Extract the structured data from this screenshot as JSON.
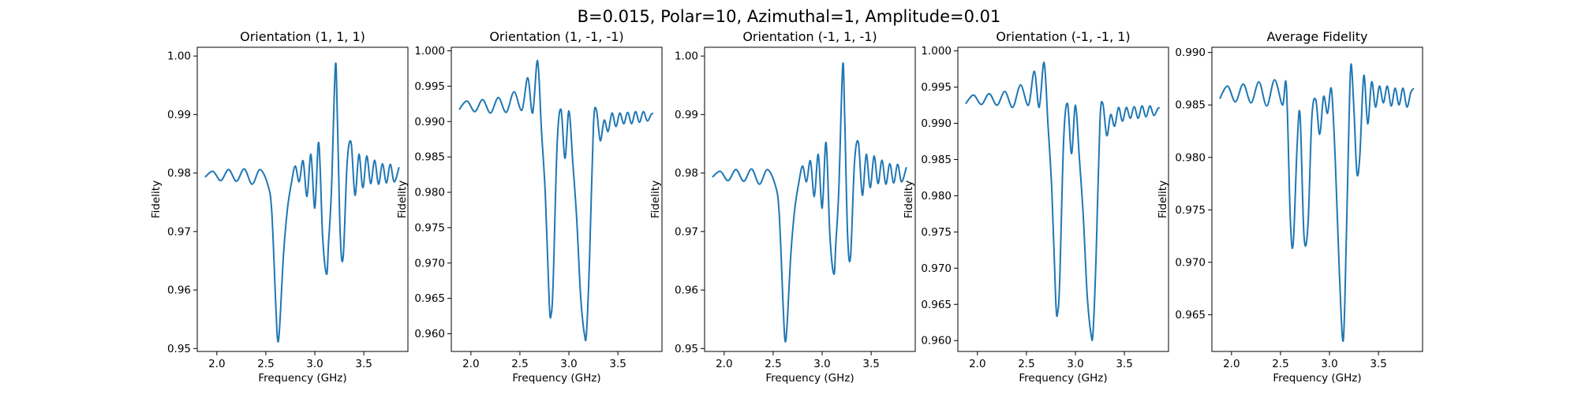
{
  "figure": {
    "suptitle": "B=0.015, Polar=10, Azimuthal=1, Amplitude=0.01",
    "line_color": "#1f77b4"
  },
  "chart_data": [
    {
      "type": "line",
      "title": "Orientation (1, 1, 1)",
      "xlabel": "Frequency (GHz)",
      "ylabel": "Fidelity",
      "xlim": [
        1.8,
        3.95
      ],
      "ylim": [
        0.9495,
        1.0015
      ],
      "xticks": [
        2.0,
        2.5,
        3.0,
        3.5
      ],
      "xtick_labels": [
        "2.0",
        "2.5",
        "3.0",
        "3.5"
      ],
      "yticks": [
        0.95,
        0.96,
        0.97,
        0.98,
        0.99,
        1.0
      ],
      "ytick_labels": [
        "0.95",
        "0.96",
        "0.97",
        "0.98",
        "0.99",
        "1.00"
      ],
      "x": [
        1.88,
        1.96,
        2.04,
        2.12,
        2.2,
        2.28,
        2.36,
        2.44,
        2.52,
        2.56,
        2.6,
        2.62,
        2.64,
        2.68,
        2.72,
        2.76,
        2.8,
        2.84,
        2.88,
        2.92,
        2.96,
        3.0,
        3.04,
        3.08,
        3.12,
        3.14,
        3.17,
        3.21,
        3.23,
        3.26,
        3.29,
        3.33,
        3.37,
        3.41,
        3.45,
        3.49,
        3.53,
        3.57,
        3.61,
        3.65,
        3.69,
        3.73,
        3.77,
        3.81,
        3.86
      ],
      "y": [
        0.9793,
        0.9803,
        0.9787,
        0.9806,
        0.9786,
        0.9807,
        0.9781,
        0.9806,
        0.978,
        0.9735,
        0.958,
        0.9515,
        0.9535,
        0.966,
        0.9738,
        0.9782,
        0.9812,
        0.9785,
        0.9821,
        0.976,
        0.9832,
        0.974,
        0.9852,
        0.969,
        0.9627,
        0.9681,
        0.9772,
        0.9984,
        0.9895,
        0.9692,
        0.9658,
        0.9818,
        0.9852,
        0.9762,
        0.9832,
        0.9775,
        0.9829,
        0.9782,
        0.9822,
        0.9781,
        0.9816,
        0.9783,
        0.9815,
        0.9785,
        0.981
      ]
    },
    {
      "type": "line",
      "title": "Orientation (1, -1, -1)",
      "xlabel": "Frequency (GHz)",
      "ylabel": "Fidelity",
      "xlim": [
        1.8,
        3.95
      ],
      "ylim": [
        0.9575,
        1.0005
      ],
      "xticks": [
        2.0,
        2.5,
        3.0,
        3.5
      ],
      "xtick_labels": [
        "2.0",
        "2.5",
        "3.0",
        "3.5"
      ],
      "yticks": [
        0.96,
        0.965,
        0.97,
        0.975,
        0.98,
        0.985,
        0.99,
        0.995,
        1.0
      ],
      "ytick_labels": [
        "0.960",
        "0.965",
        "0.970",
        "0.975",
        "0.980",
        "0.985",
        "0.990",
        "0.995",
        "1.000"
      ],
      "x": [
        1.88,
        1.96,
        2.04,
        2.12,
        2.2,
        2.28,
        2.36,
        2.44,
        2.52,
        2.58,
        2.63,
        2.68,
        2.72,
        2.76,
        2.8,
        2.82,
        2.84,
        2.88,
        2.92,
        2.96,
        3.0,
        3.04,
        3.08,
        3.12,
        3.16,
        3.18,
        3.21,
        3.25,
        3.28,
        3.32,
        3.36,
        3.4,
        3.44,
        3.48,
        3.52,
        3.56,
        3.6,
        3.64,
        3.68,
        3.72,
        3.76,
        3.8,
        3.84,
        3.86
      ],
      "y": [
        0.9917,
        0.9929,
        0.9914,
        0.9931,
        0.9912,
        0.9934,
        0.9913,
        0.9942,
        0.9916,
        0.9962,
        0.9912,
        0.9986,
        0.9888,
        0.9795,
        0.9642,
        0.9628,
        0.9675,
        0.9868,
        0.9917,
        0.9848,
        0.9915,
        0.9842,
        0.9762,
        0.9653,
        0.9598,
        0.9602,
        0.9702,
        0.9892,
        0.9917,
        0.9873,
        0.9902,
        0.9886,
        0.9912,
        0.9893,
        0.9912,
        0.9897,
        0.9913,
        0.9897,
        0.9914,
        0.9899,
        0.9914,
        0.9901,
        0.991,
        0.9912
      ]
    },
    {
      "type": "line",
      "title": "Orientation (-1, 1, -1)",
      "xlabel": "Frequency (GHz)",
      "ylabel": "Fidelity",
      "xlim": [
        1.8,
        3.95
      ],
      "ylim": [
        0.9495,
        1.0015
      ],
      "xticks": [
        2.0,
        2.5,
        3.0,
        3.5
      ],
      "xtick_labels": [
        "2.0",
        "2.5",
        "3.0",
        "3.5"
      ],
      "yticks": [
        0.95,
        0.96,
        0.97,
        0.98,
        0.99,
        1.0
      ],
      "ytick_labels": [
        "0.95",
        "0.96",
        "0.97",
        "0.98",
        "0.99",
        "1.00"
      ],
      "x": [
        1.88,
        1.96,
        2.04,
        2.12,
        2.2,
        2.28,
        2.36,
        2.44,
        2.52,
        2.56,
        2.6,
        2.62,
        2.64,
        2.68,
        2.72,
        2.76,
        2.8,
        2.84,
        2.88,
        2.92,
        2.96,
        3.0,
        3.04,
        3.08,
        3.12,
        3.14,
        3.17,
        3.21,
        3.23,
        3.26,
        3.29,
        3.33,
        3.37,
        3.41,
        3.45,
        3.49,
        3.53,
        3.57,
        3.61,
        3.65,
        3.69,
        3.73,
        3.77,
        3.81,
        3.86
      ],
      "y": [
        0.9793,
        0.9803,
        0.9787,
        0.9806,
        0.9786,
        0.9807,
        0.9781,
        0.9806,
        0.978,
        0.9735,
        0.958,
        0.9515,
        0.9535,
        0.966,
        0.9738,
        0.9782,
        0.9812,
        0.9785,
        0.9821,
        0.976,
        0.9832,
        0.974,
        0.9852,
        0.969,
        0.9627,
        0.9681,
        0.9772,
        0.9984,
        0.9895,
        0.9692,
        0.9658,
        0.9818,
        0.9852,
        0.9762,
        0.9832,
        0.9775,
        0.9829,
        0.9782,
        0.9822,
        0.9781,
        0.9816,
        0.9783,
        0.9815,
        0.9785,
        0.981
      ]
    },
    {
      "type": "line",
      "title": "Orientation (-1, -1, 1)",
      "xlabel": "Frequency (GHz)",
      "ylabel": "Fidelity",
      "xlim": [
        1.8,
        3.95
      ],
      "ylim": [
        0.9585,
        1.0005
      ],
      "xticks": [
        2.0,
        2.5,
        3.0,
        3.5
      ],
      "xtick_labels": [
        "2.0",
        "2.5",
        "3.0",
        "3.5"
      ],
      "yticks": [
        0.96,
        0.965,
        0.97,
        0.975,
        0.98,
        0.985,
        0.99,
        0.995,
        1.0
      ],
      "ytick_labels": [
        "0.960",
        "0.965",
        "0.970",
        "0.975",
        "0.980",
        "0.985",
        "0.990",
        "0.995",
        "1.000"
      ],
      "x": [
        1.88,
        1.96,
        2.04,
        2.12,
        2.2,
        2.28,
        2.36,
        2.44,
        2.52,
        2.58,
        2.63,
        2.68,
        2.72,
        2.76,
        2.8,
        2.82,
        2.84,
        2.88,
        2.92,
        2.96,
        3.0,
        3.04,
        3.08,
        3.12,
        3.16,
        3.18,
        3.21,
        3.25,
        3.28,
        3.32,
        3.36,
        3.4,
        3.44,
        3.48,
        3.52,
        3.56,
        3.6,
        3.64,
        3.68,
        3.72,
        3.76,
        3.8,
        3.84,
        3.86
      ],
      "y": [
        0.9927,
        0.9939,
        0.9926,
        0.9941,
        0.9925,
        0.9944,
        0.9922,
        0.9953,
        0.9925,
        0.9972,
        0.9922,
        0.9984,
        0.9898,
        0.9805,
        0.9652,
        0.964,
        0.9685,
        0.9878,
        0.9927,
        0.9858,
        0.9925,
        0.9852,
        0.9772,
        0.9663,
        0.9608,
        0.9612,
        0.9712,
        0.9902,
        0.9927,
        0.9883,
        0.9912,
        0.9896,
        0.9922,
        0.9903,
        0.9922,
        0.9907,
        0.9923,
        0.9907,
        0.9924,
        0.9909,
        0.9924,
        0.9911,
        0.992,
        0.9922
      ]
    },
    {
      "type": "line",
      "title": "Average Fidelity",
      "xlabel": "Frequency (GHz)",
      "ylabel": "Fidelity",
      "xlim": [
        1.8,
        3.95
      ],
      "ylim": [
        0.9615,
        0.9905
      ],
      "xticks": [
        2.0,
        2.5,
        3.0,
        3.5
      ],
      "xtick_labels": [
        "2.0",
        "2.5",
        "3.0",
        "3.5"
      ],
      "yticks": [
        0.965,
        0.97,
        0.975,
        0.98,
        0.985,
        0.99
      ],
      "ytick_labels": [
        "0.965",
        "0.970",
        "0.975",
        "0.980",
        "0.985",
        "0.990"
      ],
      "x": [
        1.88,
        1.96,
        2.04,
        2.12,
        2.2,
        2.28,
        2.36,
        2.44,
        2.52,
        2.56,
        2.6,
        2.63,
        2.67,
        2.7,
        2.74,
        2.78,
        2.82,
        2.86,
        2.9,
        2.94,
        2.98,
        3.02,
        3.06,
        3.1,
        3.14,
        3.17,
        3.2,
        3.22,
        3.25,
        3.28,
        3.31,
        3.35,
        3.39,
        3.43,
        3.47,
        3.51,
        3.55,
        3.59,
        3.63,
        3.67,
        3.71,
        3.75,
        3.79,
        3.83,
        3.86
      ],
      "y": [
        0.9856,
        0.9868,
        0.9853,
        0.987,
        0.9852,
        0.9872,
        0.9849,
        0.9874,
        0.985,
        0.9868,
        0.9742,
        0.9718,
        0.9812,
        0.984,
        0.9725,
        0.9735,
        0.9838,
        0.9855,
        0.9822,
        0.9858,
        0.9842,
        0.9865,
        0.9795,
        0.9692,
        0.9625,
        0.9715,
        0.9838,
        0.9889,
        0.9845,
        0.9785,
        0.9802,
        0.9878,
        0.9832,
        0.9872,
        0.9848,
        0.9868,
        0.9852,
        0.9868,
        0.9849,
        0.9866,
        0.985,
        0.9866,
        0.9848,
        0.9862,
        0.9866
      ]
    }
  ]
}
